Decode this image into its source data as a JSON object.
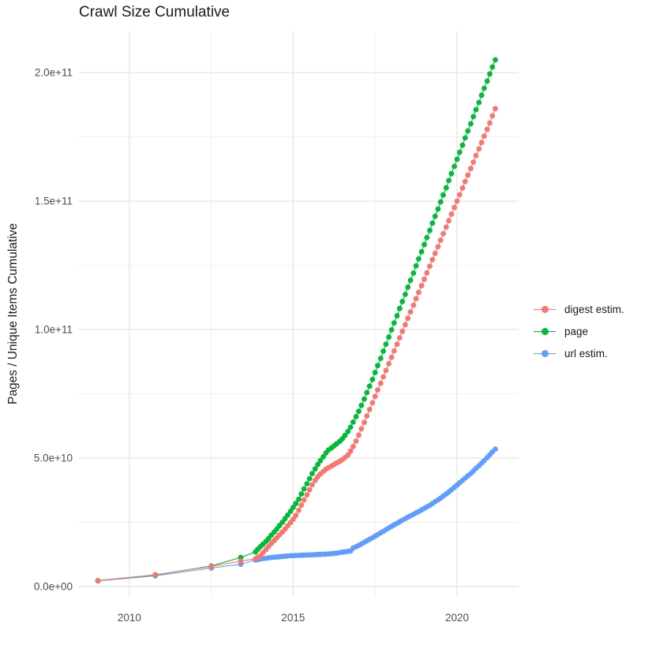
{
  "title": "Crawl Size Cumulative",
  "colors": {
    "grid_major": "#e3e3e3",
    "grid_minor": "#f0f0f0",
    "tick_text": "#4d4d4d",
    "title_text": "#1a1a1a",
    "background": "#ffffff"
  },
  "chart_data": {
    "type": "scatter",
    "title": "Crawl Size Cumulative",
    "xlabel": "",
    "ylabel": "Pages / Unique Items Cumulative",
    "values_unit": "1e9 (y value 205 means 2.05e+11 pages / unique items)",
    "x_range": [
      2008.46,
      2021.88
    ],
    "y_range": [
      -4,
      216
    ],
    "grid": true,
    "legend_position": "right",
    "x_ticks": {
      "major": [
        2010,
        2015,
        2020
      ],
      "labels": [
        "2010",
        "2015",
        "2020"
      ],
      "minor": [
        2012.5,
        2017.5
      ]
    },
    "y_ticks": {
      "major": [
        0,
        50,
        100,
        150,
        200
      ],
      "labels": [
        "0.0e+00",
        "5.0e+10",
        "1.0e+11",
        "1.5e+11",
        "2.0e+11"
      ],
      "minor": [
        25,
        75,
        125,
        175
      ]
    },
    "draw_order": "reverse",
    "series": [
      {
        "name": "digest estim.",
        "color": "#F8766D",
        "points": [
          [
            2009.04,
            2.3
          ],
          [
            2010.79,
            4.6
          ],
          [
            2012.5,
            7.8
          ],
          [
            2013.4,
            9.9
          ],
          [
            2013.85,
            10.8
          ],
          [
            2013.92,
            11.4
          ],
          [
            2014.0,
            12
          ],
          [
            2014.08,
            13.2
          ],
          [
            2014.17,
            14.4
          ],
          [
            2014.25,
            15.6
          ],
          [
            2014.33,
            16.8
          ],
          [
            2014.42,
            17.9
          ],
          [
            2014.5,
            19
          ],
          [
            2014.58,
            20.1
          ],
          [
            2014.67,
            21.2
          ],
          [
            2014.75,
            22.4
          ],
          [
            2014.83,
            23.6
          ],
          [
            2014.92,
            24.9
          ],
          [
            2015.0,
            26.2
          ],
          [
            2015.08,
            27.7
          ],
          [
            2015.17,
            29.7
          ],
          [
            2015.25,
            31.7
          ],
          [
            2015.33,
            33.7
          ],
          [
            2015.42,
            35.7
          ],
          [
            2015.5,
            37.7
          ],
          [
            2015.58,
            39.6
          ],
          [
            2015.67,
            41.3
          ],
          [
            2015.75,
            42.7
          ],
          [
            2015.83,
            43.8
          ],
          [
            2015.92,
            44.8
          ],
          [
            2016.0,
            45.7
          ],
          [
            2016.08,
            46.3
          ],
          [
            2016.17,
            46.9
          ],
          [
            2016.25,
            47.5
          ],
          [
            2016.33,
            48.1
          ],
          [
            2016.42,
            48.7
          ],
          [
            2016.5,
            49.4
          ],
          [
            2016.58,
            50.2
          ],
          [
            2016.67,
            51.2
          ],
          [
            2016.75,
            52.7
          ],
          [
            2016.83,
            54.5
          ],
          [
            2016.92,
            56.6
          ],
          [
            2017.0,
            58.9
          ],
          [
            2017.08,
            61.4
          ],
          [
            2017.17,
            63.9
          ],
          [
            2017.25,
            66.4
          ],
          [
            2017.33,
            68.9
          ],
          [
            2017.42,
            71.5
          ],
          [
            2017.5,
            74
          ],
          [
            2017.58,
            76.5
          ],
          [
            2017.67,
            79.1
          ],
          [
            2017.75,
            81.6
          ],
          [
            2017.83,
            84.1
          ],
          [
            2017.92,
            86.7
          ],
          [
            2018.0,
            89.2
          ],
          [
            2018.08,
            91.7
          ],
          [
            2018.17,
            94.3
          ],
          [
            2018.25,
            96.8
          ],
          [
            2018.33,
            99.3
          ],
          [
            2018.42,
            101.9
          ],
          [
            2018.5,
            104.4
          ],
          [
            2018.58,
            106.9
          ],
          [
            2018.67,
            109.5
          ],
          [
            2018.75,
            112
          ],
          [
            2018.83,
            114.5
          ],
          [
            2018.92,
            117.1
          ],
          [
            2019.0,
            119.6
          ],
          [
            2019.08,
            122.1
          ],
          [
            2019.17,
            124.7
          ],
          [
            2019.25,
            127.2
          ],
          [
            2019.33,
            129.7
          ],
          [
            2019.42,
            132.3
          ],
          [
            2019.5,
            134.8
          ],
          [
            2019.58,
            137.3
          ],
          [
            2019.67,
            139.9
          ],
          [
            2019.75,
            142.4
          ],
          [
            2019.83,
            144.9
          ],
          [
            2019.92,
            147.5
          ],
          [
            2020.0,
            150
          ],
          [
            2020.08,
            152.5
          ],
          [
            2020.17,
            155.1
          ],
          [
            2020.25,
            157.6
          ],
          [
            2020.33,
            160.1
          ],
          [
            2020.42,
            162.7
          ],
          [
            2020.5,
            165.2
          ],
          [
            2020.58,
            167.7
          ],
          [
            2020.67,
            170.3
          ],
          [
            2020.75,
            172.8
          ],
          [
            2020.83,
            175.3
          ],
          [
            2020.92,
            177.9
          ],
          [
            2021.0,
            180.4
          ],
          [
            2021.08,
            183.2
          ],
          [
            2021.17,
            186
          ]
        ]
      },
      {
        "name": "page",
        "color": "#00BA38",
        "points": [
          [
            2009.04,
            2.3
          ],
          [
            2010.79,
            4.5
          ],
          [
            2012.5,
            8
          ],
          [
            2013.4,
            11.3
          ],
          [
            2013.85,
            13.5
          ],
          [
            2013.92,
            14.5
          ],
          [
            2014.0,
            15.5
          ],
          [
            2014.08,
            16.5
          ],
          [
            2014.17,
            17.6
          ],
          [
            2014.25,
            18.7
          ],
          [
            2014.33,
            20
          ],
          [
            2014.42,
            21.2
          ],
          [
            2014.5,
            22.4
          ],
          [
            2014.58,
            23.7
          ],
          [
            2014.67,
            25
          ],
          [
            2014.75,
            26.4
          ],
          [
            2014.83,
            27.8
          ],
          [
            2014.92,
            29.3
          ],
          [
            2015.0,
            30.8
          ],
          [
            2015.08,
            32.3
          ],
          [
            2015.17,
            34
          ],
          [
            2015.25,
            36
          ],
          [
            2015.33,
            38
          ],
          [
            2015.42,
            40
          ],
          [
            2015.5,
            42
          ],
          [
            2015.58,
            44
          ],
          [
            2015.67,
            45.8
          ],
          [
            2015.75,
            47.5
          ],
          [
            2015.83,
            49
          ],
          [
            2015.92,
            50.5
          ],
          [
            2016.0,
            52
          ],
          [
            2016.08,
            53.2
          ],
          [
            2016.17,
            54
          ],
          [
            2016.25,
            54.8
          ],
          [
            2016.33,
            55.6
          ],
          [
            2016.42,
            56.5
          ],
          [
            2016.5,
            57.5
          ],
          [
            2016.58,
            58.8
          ],
          [
            2016.67,
            60.3
          ],
          [
            2016.75,
            62
          ],
          [
            2016.83,
            64
          ],
          [
            2016.92,
            66.1
          ],
          [
            2017.0,
            68.2
          ],
          [
            2017.08,
            70.5
          ],
          [
            2017.17,
            73
          ],
          [
            2017.25,
            75.5
          ],
          [
            2017.33,
            78
          ],
          [
            2017.42,
            80.6
          ],
          [
            2017.5,
            83.3
          ],
          [
            2017.58,
            86
          ],
          [
            2017.67,
            88.8
          ],
          [
            2017.75,
            91.6
          ],
          [
            2017.83,
            94.3
          ],
          [
            2017.92,
            97.1
          ],
          [
            2018.0,
            99.9
          ],
          [
            2018.08,
            102.6
          ],
          [
            2018.17,
            105.4
          ],
          [
            2018.25,
            108.2
          ],
          [
            2018.33,
            110.9
          ],
          [
            2018.42,
            113.7
          ],
          [
            2018.5,
            116.5
          ],
          [
            2018.58,
            119.2
          ],
          [
            2018.67,
            122
          ],
          [
            2018.75,
            124.8
          ],
          [
            2018.83,
            127.5
          ],
          [
            2018.92,
            130.3
          ],
          [
            2019.0,
            133.1
          ],
          [
            2019.08,
            135.8
          ],
          [
            2019.17,
            138.6
          ],
          [
            2019.25,
            141.4
          ],
          [
            2019.33,
            144.1
          ],
          [
            2019.42,
            146.9
          ],
          [
            2019.5,
            149.7
          ],
          [
            2019.58,
            152.4
          ],
          [
            2019.67,
            155.2
          ],
          [
            2019.75,
            158
          ],
          [
            2019.83,
            160.7
          ],
          [
            2019.92,
            163.5
          ],
          [
            2020.0,
            166.3
          ],
          [
            2020.08,
            169
          ],
          [
            2020.17,
            171.8
          ],
          [
            2020.25,
            174.6
          ],
          [
            2020.33,
            177.3
          ],
          [
            2020.42,
            180.1
          ],
          [
            2020.5,
            182.9
          ],
          [
            2020.58,
            185.6
          ],
          [
            2020.67,
            188.4
          ],
          [
            2020.75,
            191.2
          ],
          [
            2020.83,
            193.9
          ],
          [
            2020.92,
            196.7
          ],
          [
            2021.0,
            199.5
          ],
          [
            2021.08,
            202.2
          ],
          [
            2021.17,
            205
          ]
        ]
      },
      {
        "name": "url estim.",
        "color": "#619CFF",
        "points": [
          [
            2009.04,
            2.2
          ],
          [
            2010.79,
            4.2
          ],
          [
            2012.5,
            7.2
          ],
          [
            2013.4,
            8.7
          ],
          [
            2013.85,
            10.3
          ],
          [
            2013.92,
            10.5
          ],
          [
            2014.0,
            10.7
          ],
          [
            2014.08,
            10.9
          ],
          [
            2014.17,
            11
          ],
          [
            2014.25,
            11.2
          ],
          [
            2014.33,
            11.3
          ],
          [
            2014.42,
            11.4
          ],
          [
            2014.5,
            11.5
          ],
          [
            2014.58,
            11.6
          ],
          [
            2014.67,
            11.7
          ],
          [
            2014.75,
            11.8
          ],
          [
            2014.83,
            11.9
          ],
          [
            2014.92,
            12
          ],
          [
            2015.0,
            12
          ],
          [
            2015.08,
            12.1
          ],
          [
            2015.17,
            12.1
          ],
          [
            2015.25,
            12.2
          ],
          [
            2015.33,
            12.2
          ],
          [
            2015.42,
            12.3
          ],
          [
            2015.5,
            12.3
          ],
          [
            2015.58,
            12.4
          ],
          [
            2015.67,
            12.4
          ],
          [
            2015.75,
            12.5
          ],
          [
            2015.83,
            12.5
          ],
          [
            2015.92,
            12.6
          ],
          [
            2016.0,
            12.6
          ],
          [
            2016.08,
            12.7
          ],
          [
            2016.17,
            12.8
          ],
          [
            2016.25,
            12.9
          ],
          [
            2016.33,
            13
          ],
          [
            2016.42,
            13.2
          ],
          [
            2016.5,
            13.4
          ],
          [
            2016.58,
            13.5
          ],
          [
            2016.67,
            13.7
          ],
          [
            2016.75,
            13.8
          ],
          [
            2016.83,
            15
          ],
          [
            2016.92,
            15.5
          ],
          [
            2017.0,
            16
          ],
          [
            2017.08,
            16.6
          ],
          [
            2017.17,
            17.2
          ],
          [
            2017.25,
            17.8
          ],
          [
            2017.33,
            18.4
          ],
          [
            2017.42,
            19
          ],
          [
            2017.5,
            19.6
          ],
          [
            2017.58,
            20.2
          ],
          [
            2017.67,
            20.9
          ],
          [
            2017.75,
            21.5
          ],
          [
            2017.83,
            22.1
          ],
          [
            2017.92,
            22.8
          ],
          [
            2018.0,
            23.4
          ],
          [
            2018.08,
            24
          ],
          [
            2018.17,
            24.6
          ],
          [
            2018.25,
            25.2
          ],
          [
            2018.33,
            25.8
          ],
          [
            2018.42,
            26.4
          ],
          [
            2018.5,
            27
          ],
          [
            2018.58,
            27.5
          ],
          [
            2018.67,
            28.1
          ],
          [
            2018.75,
            28.7
          ],
          [
            2018.83,
            29.2
          ],
          [
            2018.92,
            29.8
          ],
          [
            2019.0,
            30.4
          ],
          [
            2019.08,
            31
          ],
          [
            2019.17,
            31.6
          ],
          [
            2019.25,
            32.3
          ],
          [
            2019.33,
            33
          ],
          [
            2019.42,
            33.7
          ],
          [
            2019.5,
            34.4
          ],
          [
            2019.58,
            35.2
          ],
          [
            2019.67,
            36
          ],
          [
            2019.75,
            36.8
          ],
          [
            2019.83,
            37.7
          ],
          [
            2019.92,
            38.6
          ],
          [
            2020.0,
            39.5
          ],
          [
            2020.08,
            40.4
          ],
          [
            2020.17,
            41.3
          ],
          [
            2020.25,
            42.2
          ],
          [
            2020.33,
            43.1
          ],
          [
            2020.42,
            44
          ],
          [
            2020.5,
            45
          ],
          [
            2020.58,
            46
          ],
          [
            2020.67,
            47
          ],
          [
            2020.75,
            48
          ],
          [
            2020.83,
            49
          ],
          [
            2020.92,
            50.2
          ],
          [
            2021.0,
            51.3
          ],
          [
            2021.08,
            52.4
          ],
          [
            2021.17,
            53.5
          ]
        ]
      }
    ]
  }
}
